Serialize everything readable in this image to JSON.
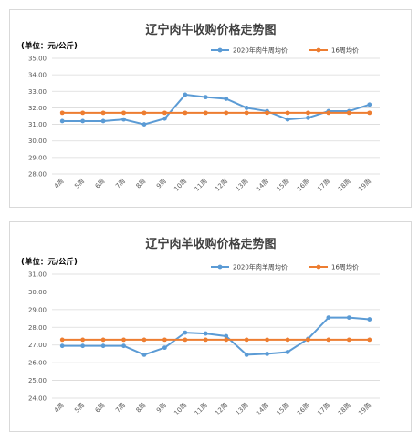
{
  "chart_data": [
    {
      "type": "line",
      "title": "辽宁肉牛收购价格走势图",
      "unit_label": "(单位：元/公斤)",
      "categories": [
        "4周",
        "5周",
        "6周",
        "7周",
        "8周",
        "9周",
        "10周",
        "11周",
        "12周",
        "13周",
        "14周",
        "15周",
        "16周",
        "17周",
        "18周",
        "19周"
      ],
      "ylim": [
        28.0,
        35.0
      ],
      "yticks": [
        "28.00",
        "29.00",
        "30.00",
        "31.00",
        "32.00",
        "33.00",
        "34.00",
        "35.00"
      ],
      "grid": true,
      "legend_position": "top-right",
      "series": [
        {
          "name": "2020年肉牛周均价",
          "color": "#5b9bd5",
          "values": [
            31.2,
            31.2,
            31.2,
            31.3,
            31.0,
            31.35,
            32.8,
            32.65,
            32.55,
            32.0,
            31.8,
            31.3,
            31.4,
            31.8,
            31.8,
            32.2
          ]
        },
        {
          "name": "16周均价",
          "color": "#ed7d31",
          "values": [
            31.7,
            31.7,
            31.7,
            31.7,
            31.7,
            31.7,
            31.7,
            31.7,
            31.7,
            31.7,
            31.7,
            31.7,
            31.7,
            31.7,
            31.7,
            31.7
          ]
        }
      ]
    },
    {
      "type": "line",
      "title": "辽宁肉羊收购价格走势图",
      "unit_label": "(单位：元/公斤)",
      "categories": [
        "4周",
        "5周",
        "6周",
        "7周",
        "8周",
        "9周",
        "10周",
        "11周",
        "12周",
        "13周",
        "14周",
        "15周",
        "16周",
        "17周",
        "18周",
        "19周"
      ],
      "ylim": [
        24.0,
        31.0
      ],
      "yticks": [
        "24.00",
        "25.00",
        "26.00",
        "27.00",
        "28.00",
        "29.00",
        "30.00",
        "31.00"
      ],
      "grid": true,
      "legend_position": "top-right",
      "series": [
        {
          "name": "2020年肉羊周均价",
          "color": "#5b9bd5",
          "values": [
            26.95,
            26.95,
            26.95,
            26.95,
            26.45,
            26.85,
            27.7,
            27.65,
            27.5,
            26.45,
            26.5,
            26.6,
            27.35,
            28.55,
            28.55,
            28.45
          ]
        },
        {
          "name": "16周均价",
          "color": "#ed7d31",
          "values": [
            27.3,
            27.3,
            27.3,
            27.3,
            27.3,
            27.3,
            27.3,
            27.3,
            27.3,
            27.3,
            27.3,
            27.3,
            27.3,
            27.3,
            27.3,
            27.3
          ]
        }
      ]
    }
  ]
}
